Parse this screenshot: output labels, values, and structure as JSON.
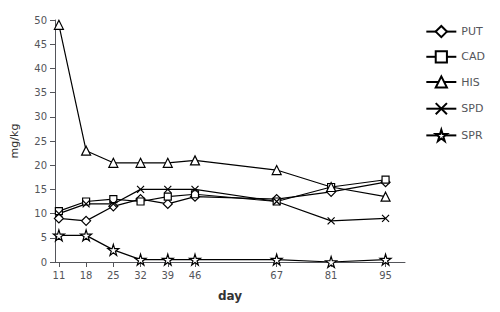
{
  "chart_data": {
    "type": "line",
    "xlabel": "day",
    "ylabel": "mg/kg",
    "x": [
      11,
      18,
      25,
      32,
      39,
      46,
      67,
      81,
      95
    ],
    "series": [
      {
        "name": "PUT",
        "color": "#000000",
        "marker": "diamond",
        "values": [
          9.0,
          8.5,
          11.5,
          13.0,
          12.0,
          13.5,
          13.0,
          14.5,
          16.5
        ]
      },
      {
        "name": "CAD",
        "color": "#000000",
        "marker": "square",
        "values": [
          10.5,
          12.5,
          13.0,
          12.5,
          13.5,
          14.0,
          12.5,
          15.5,
          17.0
        ]
      },
      {
        "name": "HIS",
        "color": "#000000",
        "marker": "triangle",
        "values": [
          49.0,
          23.0,
          20.5,
          20.5,
          20.5,
          21.0,
          19.0,
          15.5,
          13.5
        ]
      },
      {
        "name": "SPD",
        "color": "#000000",
        "marker": "x",
        "values": [
          10.0,
          12.0,
          12.0,
          15.0,
          15.0,
          15.0,
          12.5,
          8.5,
          9.0
        ]
      },
      {
        "name": "SPR",
        "color": "#000000",
        "marker": "star",
        "values": [
          5.5,
          5.5,
          2.5,
          0.5,
          0.5,
          0.5,
          0.5,
          0.0,
          0.5
        ]
      }
    ],
    "xlim": [
      10,
      100
    ],
    "xticks": [
      11,
      18,
      25,
      32,
      39,
      46,
      67,
      81,
      95
    ],
    "ylim": [
      0,
      50
    ],
    "yticks": [
      0,
      5,
      10,
      15,
      20,
      25,
      30,
      35,
      40,
      45,
      50
    ],
    "grid": false,
    "legend": "right"
  }
}
